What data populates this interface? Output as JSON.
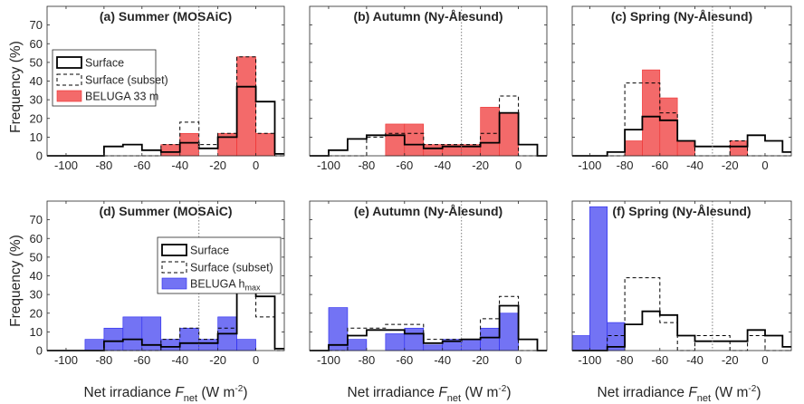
{
  "figure": {
    "ylabel": "Frequency (%)",
    "xlabel_main": "Net irradiance ",
    "xlabel_var": "F",
    "xlabel_sub": "net",
    "xlabel_unit": " (W m",
    "xlabel_exp": "-2",
    "xlabel_close": ")",
    "colors": {
      "surface": "#000000",
      "red": "#f36a6a",
      "red_edge": "#ee2d2d",
      "blue": "#7373f4",
      "blue_edge": "#2525ee",
      "grid": "#808080"
    }
  },
  "chart_data": [
    {
      "type": "bar",
      "title": "(a) Summer (MOSAiC)",
      "xlim": [
        -110,
        15
      ],
      "ylim": [
        0,
        80
      ],
      "xticks": [
        -100,
        -80,
        -60,
        -40,
        -20,
        0
      ],
      "yticks": [
        0,
        10,
        20,
        30,
        40,
        50,
        60,
        70
      ],
      "vline": -30,
      "legend": {
        "location": "left",
        "labels": [
          "Surface",
          "Surface (subset)",
          "BELUGA 33 m"
        ]
      },
      "bin_edges": [
        -110,
        -100,
        -90,
        -80,
        -70,
        -60,
        -50,
        -40,
        -30,
        -20,
        -10,
        0,
        10,
        15
      ],
      "series": [
        {
          "name": "BELUGA 33 m",
          "style": "fill",
          "color": "#f36a6a",
          "values": [
            0,
            0,
            0,
            0,
            0,
            0,
            6,
            12,
            0,
            12,
            53,
            12,
            0
          ]
        },
        {
          "name": "Surface (subset)",
          "style": "dashed",
          "values": [
            0,
            0,
            0,
            0,
            0,
            0,
            6,
            18,
            6,
            12,
            53,
            12,
            0
          ]
        },
        {
          "name": "Surface",
          "style": "solid",
          "values": [
            0,
            0,
            0,
            5,
            6,
            3,
            2,
            7,
            4,
            10,
            37,
            29,
            1
          ]
        }
      ]
    },
    {
      "type": "bar",
      "title": "(b) Autumn (Ny-Ålesund)",
      "xlim": [
        -110,
        15
      ],
      "ylim": [
        0,
        80
      ],
      "xticks": [
        -100,
        -80,
        -60,
        -40,
        -20,
        0
      ],
      "yticks": [
        0,
        10,
        20,
        30,
        40,
        50,
        60,
        70
      ],
      "vline": -30,
      "bin_edges": [
        -110,
        -100,
        -90,
        -80,
        -70,
        -60,
        -50,
        -40,
        -30,
        -20,
        -10,
        0,
        10,
        15
      ],
      "series": [
        {
          "name": "BELUGA 33 m",
          "style": "fill",
          "color": "#f36a6a",
          "values": [
            0,
            0,
            0,
            0,
            17,
            17,
            6,
            6,
            6,
            26,
            23,
            0,
            0
          ]
        },
        {
          "name": "Surface (subset)",
          "style": "dashed",
          "values": [
            0,
            0,
            0,
            10,
            12,
            12,
            6,
            6,
            6,
            12,
            32,
            0,
            0
          ]
        },
        {
          "name": "Surface",
          "style": "solid",
          "values": [
            0,
            3,
            9,
            11,
            11,
            6,
            4,
            5,
            5,
            7,
            23,
            6,
            0
          ]
        }
      ]
    },
    {
      "type": "bar",
      "title": "(c) Spring (Ny-Ålesund)",
      "xlim": [
        -110,
        15
      ],
      "ylim": [
        0,
        80
      ],
      "xticks": [
        -100,
        -80,
        -60,
        -40,
        -20,
        0
      ],
      "yticks": [
        0,
        10,
        20,
        30,
        40,
        50,
        60,
        70
      ],
      "vline": -30,
      "bin_edges": [
        -110,
        -100,
        -90,
        -80,
        -70,
        -60,
        -50,
        -40,
        -30,
        -20,
        -10,
        0,
        10,
        15
      ],
      "series": [
        {
          "name": "BELUGA 33 m",
          "style": "fill",
          "color": "#f36a6a",
          "values": [
            0,
            0,
            0,
            8,
            46,
            31,
            8,
            0,
            0,
            8,
            0,
            0,
            0
          ]
        },
        {
          "name": "Surface (subset)",
          "style": "dashed",
          "values": [
            0,
            0,
            0,
            39,
            39,
            23,
            8,
            0,
            0,
            8,
            0,
            0,
            0
          ]
        },
        {
          "name": "Surface",
          "style": "solid",
          "values": [
            0,
            0,
            2,
            14,
            21,
            19,
            8,
            5,
            5,
            5,
            11,
            8,
            2
          ]
        }
      ]
    },
    {
      "type": "bar",
      "title": "(d) Summer (MOSAiC)",
      "xlim": [
        -110,
        15
      ],
      "ylim": [
        0,
        80
      ],
      "xticks": [
        -100,
        -80,
        -60,
        -40,
        -20,
        0
      ],
      "yticks": [
        0,
        10,
        20,
        30,
        40,
        50,
        60,
        70
      ],
      "vline": -30,
      "legend": {
        "location": "right",
        "labels": [
          "Surface",
          "Surface (subset)",
          "BELUGA h"
        ],
        "legend_sub": "max"
      },
      "bin_edges": [
        -110,
        -100,
        -90,
        -80,
        -70,
        -60,
        -50,
        -40,
        -30,
        -20,
        -10,
        0,
        10,
        15
      ],
      "series": [
        {
          "name": "BELUGA hmax",
          "style": "fill",
          "color": "#7373f4",
          "values": [
            0,
            0,
            6,
            12,
            18,
            18,
            6,
            12,
            6,
            18,
            6,
            0,
            0
          ]
        },
        {
          "name": "Surface (subset)",
          "style": "dashed",
          "values": [
            0,
            0,
            0,
            0,
            0,
            0,
            6,
            12,
            6,
            12,
            53,
            18,
            0
          ]
        },
        {
          "name": "Surface",
          "style": "solid",
          "values": [
            0,
            0,
            0,
            5,
            6,
            3,
            2,
            4,
            4,
            9,
            37,
            29,
            1
          ]
        }
      ]
    },
    {
      "type": "bar",
      "title": "(e) Autumn (Ny-Ålesund)",
      "xlim": [
        -110,
        15
      ],
      "ylim": [
        0,
        80
      ],
      "xticks": [
        -100,
        -80,
        -60,
        -40,
        -20,
        0
      ],
      "yticks": [
        0,
        10,
        20,
        30,
        40,
        50,
        60,
        70
      ],
      "vline": -30,
      "bin_edges": [
        -110,
        -100,
        -90,
        -80,
        -70,
        -60,
        -50,
        -40,
        -30,
        -20,
        -10,
        0,
        10,
        15
      ],
      "series": [
        {
          "name": "BELUGA hmax",
          "style": "fill",
          "color": "#7373f4",
          "values": [
            0,
            23,
            6,
            0,
            9,
            12,
            3,
            6,
            6,
            12,
            20,
            0,
            0
          ]
        },
        {
          "name": "Surface (subset)",
          "style": "dashed",
          "values": [
            0,
            0,
            12,
            12,
            14,
            14,
            6,
            6,
            6,
            17,
            29,
            0,
            0
          ]
        },
        {
          "name": "Surface",
          "style": "solid",
          "values": [
            0,
            3,
            8,
            11,
            11,
            9,
            4,
            5,
            6,
            7,
            24,
            6,
            0
          ]
        }
      ]
    },
    {
      "type": "bar",
      "title": "(f) Spring (Ny-Ålesund)",
      "xlim": [
        -110,
        15
      ],
      "ylim": [
        0,
        80
      ],
      "xticks": [
        -100,
        -80,
        -60,
        -40,
        -20,
        0
      ],
      "yticks": [
        0,
        10,
        20,
        30,
        40,
        50,
        60,
        70
      ],
      "vline": -30,
      "bin_edges": [
        -110,
        -100,
        -90,
        -80,
        -70,
        -60,
        -50,
        -40,
        -30,
        -20,
        -10,
        0,
        10,
        15
      ],
      "series": [
        {
          "name": "BELUGA hmax",
          "style": "fill",
          "color": "#7373f4",
          "values": [
            8,
            77,
            15,
            0,
            0,
            0,
            0,
            0,
            0,
            0,
            0,
            0,
            0
          ]
        },
        {
          "name": "Surface (subset)",
          "style": "dashed",
          "values": [
            0,
            0,
            8,
            39,
            39,
            15,
            0,
            8,
            8,
            0,
            8,
            0,
            0
          ]
        },
        {
          "name": "Surface",
          "style": "solid",
          "values": [
            0,
            0,
            2,
            14,
            21,
            19,
            8,
            5,
            5,
            5,
            11,
            8,
            2
          ]
        }
      ]
    }
  ]
}
